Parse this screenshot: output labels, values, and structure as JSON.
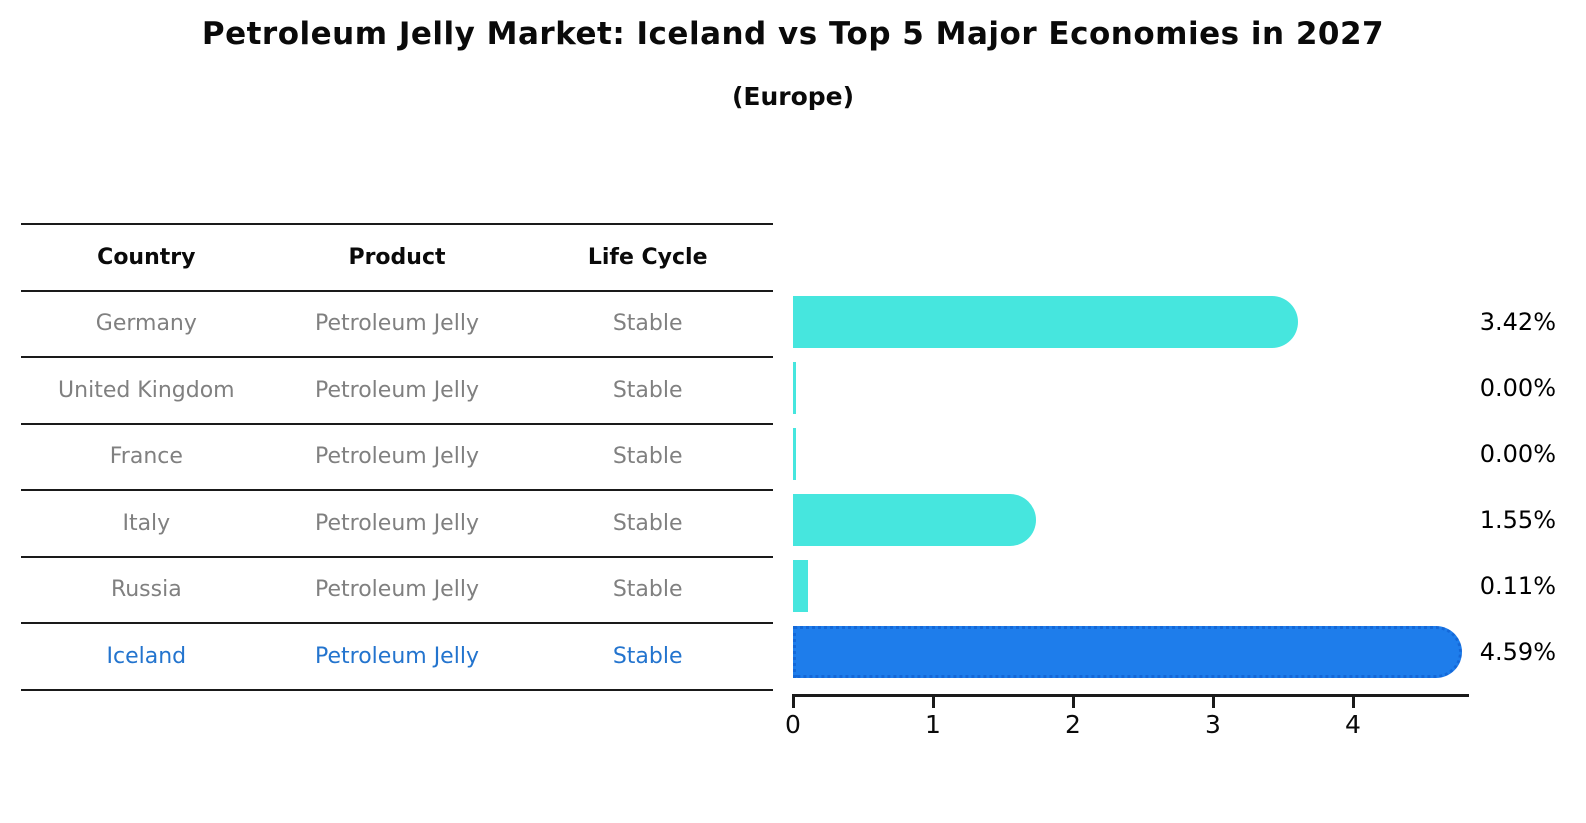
{
  "title": "Petroleum Jelly Market: Iceland vs Top 5 Major Economies in 2027",
  "subtitle": "(Europe)",
  "table": {
    "headers": [
      "Country",
      "Product",
      "Life Cycle"
    ],
    "rows": [
      {
        "country": "Germany",
        "product": "Petroleum Jelly",
        "life_cycle": "Stable",
        "highlighted": false
      },
      {
        "country": "United Kingdom",
        "product": "Petroleum Jelly",
        "life_cycle": "Stable",
        "highlighted": false
      },
      {
        "country": "France",
        "product": "Petroleum Jelly",
        "life_cycle": "Stable",
        "highlighted": false
      },
      {
        "country": "Italy",
        "product": "Petroleum Jelly",
        "life_cycle": "Stable",
        "highlighted": false
      },
      {
        "country": "Russia",
        "product": "Petroleum Jelly",
        "life_cycle": "Stable",
        "highlighted": false
      },
      {
        "country": "Iceland",
        "product": "Petroleum Jelly",
        "life_cycle": "Stable",
        "highlighted": true
      }
    ]
  },
  "chart_data": {
    "type": "bar",
    "orientation": "horizontal",
    "title": "Petroleum Jelly Market: Iceland vs Top 5 Major Economies in 2027",
    "subtitle": "(Europe)",
    "categories": [
      "Germany",
      "United Kingdom",
      "France",
      "Italy",
      "Russia",
      "Iceland"
    ],
    "values": [
      3.42,
      0.0,
      0.0,
      1.55,
      0.11,
      4.59
    ],
    "value_labels": [
      "3.42%",
      "0.00%",
      "0.00%",
      "1.55%",
      "0.11%",
      "4.59%"
    ],
    "unit": "%",
    "x_ticks": [
      0,
      1,
      2,
      3,
      4
    ],
    "xlim": [
      0,
      4.82
    ],
    "highlight_index": 5,
    "grid": false,
    "legend": false
  },
  "colors": {
    "bar_default": "#46E6DE",
    "bar_highlight": "#1E7DEB",
    "bar_highlight_border": "#1468D8",
    "table_text": "#808080",
    "header_text": "#0A0A0A",
    "highlight_text": "#2374CE",
    "line": "#1A1A1A",
    "value_label_text": "#000000"
  }
}
